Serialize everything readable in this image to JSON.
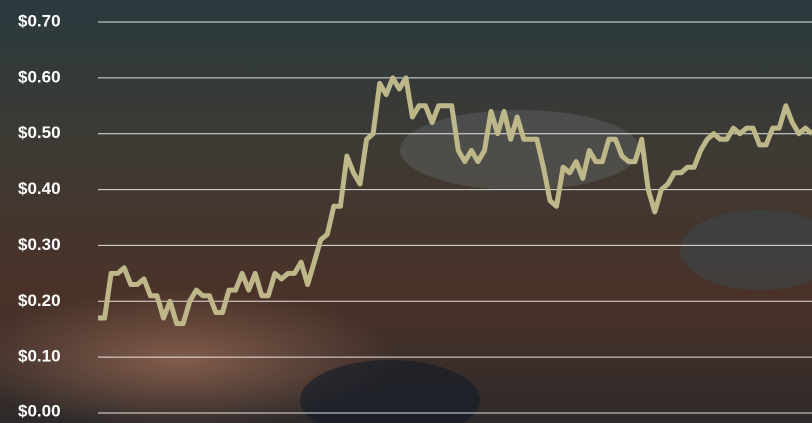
{
  "chart_data": {
    "type": "line",
    "color": "#bdb78a",
    "grid": true,
    "ylim": [
      0,
      0.7
    ],
    "yticks": [
      {
        "value": 0,
        "label": "$0.00"
      },
      {
        "value": 0.1,
        "label": "$0.10"
      },
      {
        "value": 0.2,
        "label": "$0.20"
      },
      {
        "value": 0.3,
        "label": "$0.30"
      },
      {
        "value": 0.4,
        "label": "$0.40"
      },
      {
        "value": 0.5,
        "label": "$0.50"
      },
      {
        "value": 0.6,
        "label": "$0.60"
      },
      {
        "value": 0.7,
        "label": "$0.70"
      }
    ],
    "values": [
      0.17,
      0.17,
      0.25,
      0.25,
      0.26,
      0.23,
      0.23,
      0.24,
      0.21,
      0.21,
      0.17,
      0.2,
      0.16,
      0.16,
      0.2,
      0.22,
      0.21,
      0.21,
      0.18,
      0.18,
      0.22,
      0.22,
      0.25,
      0.22,
      0.25,
      0.21,
      0.21,
      0.25,
      0.24,
      0.25,
      0.25,
      0.27,
      0.23,
      0.27,
      0.31,
      0.32,
      0.37,
      0.37,
      0.46,
      0.43,
      0.41,
      0.49,
      0.5,
      0.59,
      0.57,
      0.6,
      0.58,
      0.6,
      0.53,
      0.55,
      0.55,
      0.52,
      0.55,
      0.55,
      0.55,
      0.47,
      0.45,
      0.47,
      0.45,
      0.47,
      0.54,
      0.5,
      0.54,
      0.49,
      0.53,
      0.49,
      0.49,
      0.49,
      0.44,
      0.38,
      0.37,
      0.44,
      0.43,
      0.45,
      0.42,
      0.47,
      0.45,
      0.45,
      0.49,
      0.49,
      0.46,
      0.45,
      0.45,
      0.49,
      0.4,
      0.36,
      0.4,
      0.41,
      0.43,
      0.43,
      0.44,
      0.44,
      0.47,
      0.49,
      0.5,
      0.49,
      0.49,
      0.51,
      0.5,
      0.51,
      0.51,
      0.48,
      0.48,
      0.51,
      0.51,
      0.55,
      0.52,
      0.5,
      0.51,
      0.5
    ]
  }
}
